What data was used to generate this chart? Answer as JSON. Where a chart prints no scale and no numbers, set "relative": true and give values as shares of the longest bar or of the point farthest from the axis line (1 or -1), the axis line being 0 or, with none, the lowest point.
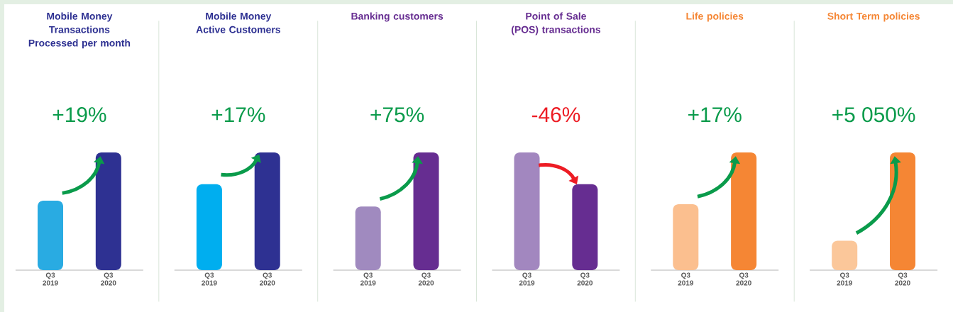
{
  "chart_data": [
    {
      "type": "bar",
      "title": "Mobile Money Transactions Processed per month",
      "categories": [
        "Q3 2019",
        "Q3 2020"
      ],
      "values": [
        0.59,
        1
      ],
      "colors": [
        "#29abe2",
        "#2e3192"
      ],
      "relative": true,
      "annotations": [
        "+19%"
      ]
    },
    {
      "type": "bar",
      "title": "Mobile Money Active Customers",
      "categories": [
        "Q3 2019",
        "Q3 2020"
      ],
      "values": [
        0.73,
        1
      ],
      "colors": [
        "#00aeef",
        "#2e3192"
      ],
      "relative": true,
      "annotations": [
        "+17%"
      ]
    },
    {
      "type": "bar",
      "title": "Banking customers",
      "categories": [
        "Q3 2019",
        "Q3 2020"
      ],
      "values": [
        0.54,
        1
      ],
      "colors": [
        "#a08abf",
        "#662d91"
      ],
      "relative": true,
      "annotations": [
        "+75%"
      ]
    },
    {
      "type": "bar",
      "title": "Point of Sale (POS) transactions",
      "categories": [
        "Q3 2019",
        "Q3 2020"
      ],
      "values": [
        1,
        0.73
      ],
      "colors": [
        "#a287bf",
        "#662d91"
      ],
      "relative": true,
      "annotations": [
        "-46%"
      ]
    },
    {
      "type": "bar",
      "title": "Life policies",
      "categories": [
        "Q3 2019",
        "Q3 2020"
      ],
      "values": [
        0.56,
        1
      ],
      "colors": [
        "#fbbf8f",
        "#f58634"
      ],
      "relative": true,
      "annotations": [
        "+17%"
      ]
    },
    {
      "type": "bar",
      "title": "Short Term policies",
      "categories": [
        "Q3 2019",
        "Q3 2020"
      ],
      "values": [
        0.25,
        1
      ],
      "colors": [
        "#fbc79a",
        "#f58634"
      ],
      "relative": true,
      "annotations": [
        "+5 050%"
      ]
    }
  ]
}
